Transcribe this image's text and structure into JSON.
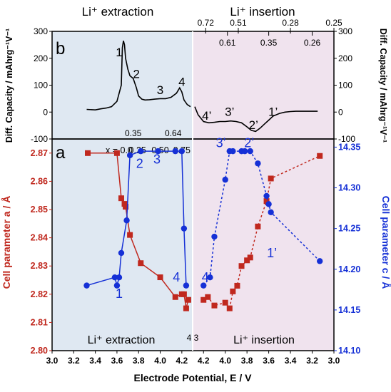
{
  "chart_data": [
    {
      "type": "line",
      "panel": "b",
      "ylabel": "Diff. Capacity / mAhrg⁻¹V⁻¹",
      "ylim": [
        -100,
        300
      ],
      "yticks": [
        "300",
        "200",
        "100",
        "0",
        "-100"
      ],
      "regions": {
        "left": "Li⁺ extraction",
        "right": "Li⁺ insertion"
      },
      "top_x_labels": [
        {
          "text": "0.72",
          "x": 4.18
        },
        {
          "text": "0.51",
          "x": 3.88
        },
        {
          "text": "0.28",
          "x": 3.4
        },
        {
          "text": "0.25",
          "x": 3.0
        }
      ],
      "inner_top_labels": [
        {
          "text": "0.61",
          "x": 3.98
        },
        {
          "text": "0.35",
          "x": 3.6
        },
        {
          "text": "0.26",
          "x": 3.2
        }
      ],
      "inner_bottom_labels": [
        {
          "text": "0.35",
          "x": 3.75
        },
        {
          "text": "0.64",
          "x": 4.12
        }
      ],
      "peak_labels": [
        {
          "text": "1",
          "x": 3.62,
          "y": 220
        },
        {
          "text": "2",
          "x": 3.78,
          "y": 140
        },
        {
          "text": "3",
          "x": 4.0,
          "y": 80
        },
        {
          "text": "4",
          "x": 4.2,
          "y": 110
        },
        {
          "text": "4’",
          "x": 4.17,
          "y": -15
        },
        {
          "text": "3’",
          "x": 3.96,
          "y": 0
        },
        {
          "text": "2’",
          "x": 3.74,
          "y": -50
        },
        {
          "text": "1’",
          "x": 3.56,
          "y": 0
        }
      ],
      "series": [
        {
          "name": "extraction",
          "x": [
            3.32,
            3.4,
            3.45,
            3.5,
            3.55,
            3.6,
            3.64,
            3.65,
            3.66,
            3.67,
            3.68,
            3.7,
            3.72,
            3.75,
            3.78,
            3.8,
            3.83,
            3.86,
            3.9,
            3.95,
            4.0,
            4.05,
            4.1,
            4.15,
            4.18,
            4.2,
            4.22,
            4.25,
            4.28
          ],
          "y": [
            10,
            8,
            12,
            15,
            20,
            40,
            100,
            240,
            265,
            250,
            200,
            160,
            135,
            125,
            90,
            60,
            48,
            45,
            46,
            48,
            50,
            50,
            55,
            70,
            90,
            75,
            45,
            28,
            20
          ]
        },
        {
          "name": "insertion",
          "x": [
            4.28,
            4.25,
            4.2,
            4.15,
            4.1,
            4.05,
            4.0,
            3.95,
            3.9,
            3.85,
            3.8,
            3.76,
            3.72,
            3.68,
            3.64,
            3.6,
            3.56,
            3.5,
            3.45,
            3.4,
            3.35,
            3.3,
            3.2,
            3.15
          ],
          "y": [
            20,
            -10,
            -35,
            -40,
            -38,
            -35,
            -35,
            -33,
            -35,
            -40,
            -55,
            -68,
            -72,
            -60,
            -45,
            -30,
            -15,
            -5,
            0,
            2,
            3,
            3,
            3,
            3
          ]
        }
      ]
    },
    {
      "type": "scatter",
      "panel": "a",
      "xlabel": "Electrode Potential, E / V",
      "xticks": [
        "3.0",
        "3.2",
        "3.4",
        "3.6",
        "3.8",
        "4.0",
        "4.2",
        "4.2",
        "4.0",
        "3.8",
        "3.6",
        "3.4",
        "3.2",
        "3.0"
      ],
      "ylabel_left": "Cell parameter a / Å",
      "ylim_left": [
        2.8,
        2.875
      ],
      "yticks_left": [
        "2.87",
        "2.86",
        "2.85",
        "2.84",
        "2.83",
        "2.82",
        "2.81",
        "2.80"
      ],
      "ylabel_right": "Cell parameter c / Å",
      "ylim_right": [
        14.1,
        14.36
      ],
      "yticks_right": [
        "14.35",
        "14.30",
        "14.25",
        "14.20",
        "14.15",
        "14.10"
      ],
      "regions": {
        "left": "Li⁺ extraction",
        "right": "Li⁺ insertion",
        "boundary": "4.3"
      },
      "top_labels": [
        {
          "text": "x = 0.0",
          "x": 3.62
        },
        {
          "text": "0.25",
          "x": 3.79
        },
        {
          "text": "0.50",
          "x": 4.0
        },
        {
          "text": "0.75",
          "x": 4.2
        }
      ],
      "point_labels": [
        {
          "text": "1",
          "x": 3.62,
          "y": 14.17
        },
        {
          "text": "2",
          "x": 3.81,
          "y": 14.33
        },
        {
          "text": "3",
          "x": 3.97,
          "y": 14.335
        },
        {
          "text": "4",
          "x": 4.15,
          "y": 14.19
        },
        {
          "text": "4’",
          "x": 4.17,
          "y": 14.19
        },
        {
          "text": "3’",
          "x": 4.04,
          "y": 14.355
        },
        {
          "text": "2’",
          "x": 3.78,
          "y": 14.355
        },
        {
          "text": "1’",
          "x": 3.57,
          "y": 14.22
        }
      ],
      "series": [
        {
          "name": "a-extraction",
          "axis": "left",
          "color": "#c0281e",
          "dash": false,
          "x": [
            3.33,
            3.6,
            3.64,
            3.67,
            3.68,
            3.72,
            3.82,
            4.0,
            4.14,
            4.2,
            4.22,
            4.24,
            4.26
          ],
          "y": [
            2.87,
            2.87,
            2.854,
            2.852,
            2.851,
            2.841,
            2.831,
            2.826,
            2.819,
            2.82,
            2.82,
            2.815,
            2.818
          ]
        },
        {
          "name": "c-extraction",
          "axis": "right",
          "color": "#1530d6",
          "dash": false,
          "x": [
            3.32,
            3.58,
            3.6,
            3.62,
            3.64,
            3.69,
            3.72,
            3.82,
            3.98,
            4.14,
            4.2,
            4.22,
            4.24
          ],
          "y": [
            14.18,
            14.19,
            14.18,
            14.19,
            14.22,
            14.26,
            14.34,
            14.345,
            14.345,
            14.345,
            14.345,
            14.25,
            14.18
          ]
        },
        {
          "name": "a-insertion",
          "axis": "left",
          "color": "#c0281e",
          "dash": true,
          "x": [
            4.2,
            4.16,
            4.1,
            4.0,
            3.96,
            3.93,
            3.89,
            3.85,
            3.8,
            3.77,
            3.7,
            3.62,
            3.58,
            3.13
          ],
          "y": [
            2.818,
            2.819,
            2.816,
            2.817,
            2.815,
            2.821,
            2.823,
            2.83,
            2.832,
            2.833,
            2.844,
            2.853,
            2.861,
            2.869
          ]
        },
        {
          "name": "c-insertion",
          "axis": "right",
          "color": "#1530d6",
          "dash": true,
          "x": [
            4.2,
            4.14,
            4.1,
            4.0,
            3.96,
            3.93,
            3.85,
            3.82,
            3.77,
            3.7,
            3.62,
            3.6,
            3.58,
            3.13
          ],
          "y": [
            14.18,
            14.19,
            14.24,
            14.31,
            14.345,
            14.345,
            14.345,
            14.345,
            14.345,
            14.33,
            14.29,
            14.28,
            14.27,
            14.21
          ]
        }
      ]
    }
  ]
}
